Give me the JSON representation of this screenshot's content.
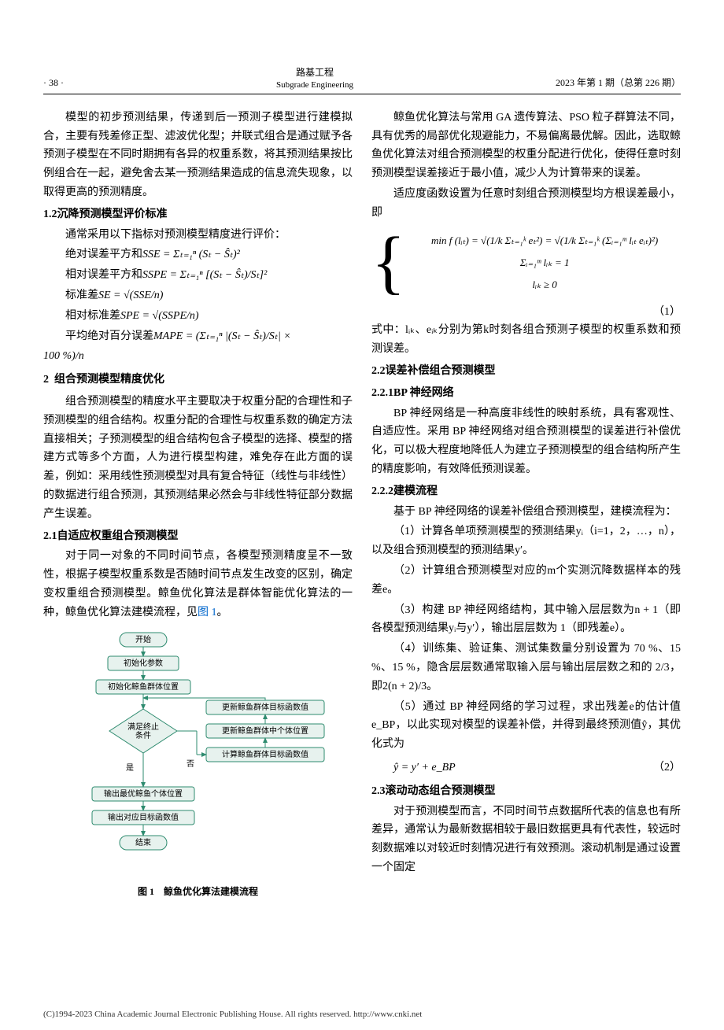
{
  "header": {
    "page_num": "· 38 ·",
    "journal_zh": "路基工程",
    "journal_en": "Subgrade Engineering",
    "issue": "2023 年第 1 期（总第 226 期）"
  },
  "left": {
    "p1": "模型的初步预测结果，传递到后一预测子模型进行建模拟合，主要有残差修正型、滤波优化型；并联式组合是通过赋予各预测子模型在不同时期拥有各异的权重系数，将其预测结果按比例组合在一起，避免舍去某一预测结果造成的信息流失现象，以取得更高的预测精度。",
    "h1_2_num": "1.2",
    "h1_2": "沉降预测模型评价标准",
    "p1_2": "通常采用以下指标对预测模型精度进行评价：",
    "f1_label": "绝对误差平方和",
    "f1": "SSE = Σₜ₌₁ⁿ (Sₜ − Ŝₜ)²",
    "f2_label": "相对误差平方和",
    "f2": "SSPE = Σₜ₌₁ⁿ [(Sₜ − Ŝₜ)/Sₜ]²",
    "f3_label": "标准差",
    "f3": "SE = √(SSE/n)",
    "f4_label": "相对标准差",
    "f4": "SPE = √(SSPE/n)",
    "f5_label": "平均绝对百分误差",
    "f5a": "MAPE = (Σₜ₌₁ⁿ |(Sₜ − Ŝₜ)/Sₜ| ×",
    "f5b": "100 %)/n",
    "h2_num": "2",
    "h2": "组合预测模型精度优化",
    "p2a": "组合预测模型的精度水平主要取决于权重分配的合理性和子预测模型的组合结构。权重分配的合理性与权重系数的确定方法直接相关；子预测模型的组合结构包含子模型的选择、模型的搭建方式等多个方面，人为进行模型构建，难免存在此方面的误差，例如：采用线性预测模型对具有复合特征（线性与非线性）的数据进行组合预测，其预测结果必然会与非线性特征部分数据产生误差。",
    "h2_1_num": "2.1",
    "h2_1": "自适应权重组合预测模型",
    "p2_1": "对于同一对象的不同时间节点，各模型预测精度呈不一致性，根据子模型权重系数是否随时间节点发生改变的区别，确定变权重组合预测模型。鲸鱼优化算法是群体智能优化算法的一种，鲸鱼优化算法建模流程，见",
    "fig_link": "图 1",
    "p2_1_end": "。",
    "flow": {
      "start": "开始",
      "n1": "初始化参数",
      "n2": "初始化鲸鱼群体位置",
      "cond": "满足终止\n条件",
      "yes": "是",
      "no": "否",
      "r1": "更新鲸鱼群体目标函数值",
      "r2": "更新鲸鱼群体中个体位置",
      "r3": "计算鲸鱼群体目标函数值",
      "n3": "输出最优鲸鱼个体位置",
      "n4": "输出对应目标函数值",
      "end": "结束",
      "stroke": "#2e8b6f",
      "fill_pill": "#e7f2ee",
      "fill_box": "#e7f2ee"
    },
    "fig1_caption": "图 1　鲸鱼优化算法建模流程"
  },
  "right": {
    "p1": "鲸鱼优化算法与常用 GA 遗传算法、PSO 粒子群算法不同，具有优秀的局部优化规避能力，不易偏离最优解。因此，选取鲸鱼优化算法对组合预测模型的权重分配进行优化，使得任意时刻预测模型误差接近于最小值，减少人为计算带来的误差。",
    "p2": "适应度函数设置为任意时刻组合预测模型均方根误差最小，即",
    "eq1_l1": "min f (lᵢₜ) = √(1/k Σₜ₌₁ᵏ eₜ²) = √(1/k Σₜ₌₁ᵏ (Σᵢ₌₁ᵐ lᵢₜ eᵢₜ)²)",
    "eq1_l2": "Σᵢ₌₁ᵐ lᵢₖ = 1",
    "eq1_l3": "lᵢₖ ≥ 0",
    "eq1_num": "（1）",
    "p_after_eq1": "式中：lᵢₖ、eᵢₖ分别为第k时刻各组合预测子模型的权重系数和预测误差。",
    "h2_2_num": "2.2",
    "h2_2": "误差补偿组合预测模型",
    "h2_2_1_num": "2.2.1",
    "h2_2_1": "BP 神经网络",
    "p2_2_1": "BP 神经网络是一种高度非线性的映射系统，具有客观性、自适应性。采用 BP 神经网络对组合预测模型的误差进行补偿优化，可以极大程度地降低人为建立子预测模型的组合结构所产生的精度影响，有效降低预测误差。",
    "h2_2_2_num": "2.2.2",
    "h2_2_2": "建模流程",
    "p2_2_2a": "基于 BP 神经网络的误差补偿组合预测模型，建模流程为：",
    "step1": "（1）计算各单项预测模型的预测结果yᵢ（i=1，2，…，n），以及组合预测模型的预测结果y′。",
    "step2": "（2）计算组合预测模型对应的m个实测沉降数据样本的残差e。",
    "step3": "（3）构建 BP 神经网络结构，其中输入层层数为n + 1（即各模型预测结果yᵢ与y′），输出层层数为 1（即残差e）。",
    "step4": "（4）训练集、验证集、测试集数量分别设置为 70 %、15 %、15 %，隐含层层数通常取输入层与输出层层数之和的 2/3，即2(n + 2)/3。",
    "step5": "（5）通过 BP 神经网络的学习过程，求出残差e的估计值e_BP，以此实现对模型的误差补偿，并得到最终预测值ŷ，其优化式为",
    "eq2": "ŷ = y′ + e_BP",
    "eq2_num": "（2）",
    "h2_3_num": "2.3",
    "h2_3": "滚动动态组合预测模型",
    "p2_3": "对于预测模型而言，不同时间节点数据所代表的信息也有所差异，通常认为最新数据相较于最旧数据更具有代表性，较远时刻数据难以对较近时刻情况进行有效预测。滚动机制是通过设置一个固定"
  },
  "footer": {
    "copyright": "(C)1994-2023 China Academic Journal Electronic Publishing House. All rights reserved.    http://www.cnki.net"
  }
}
